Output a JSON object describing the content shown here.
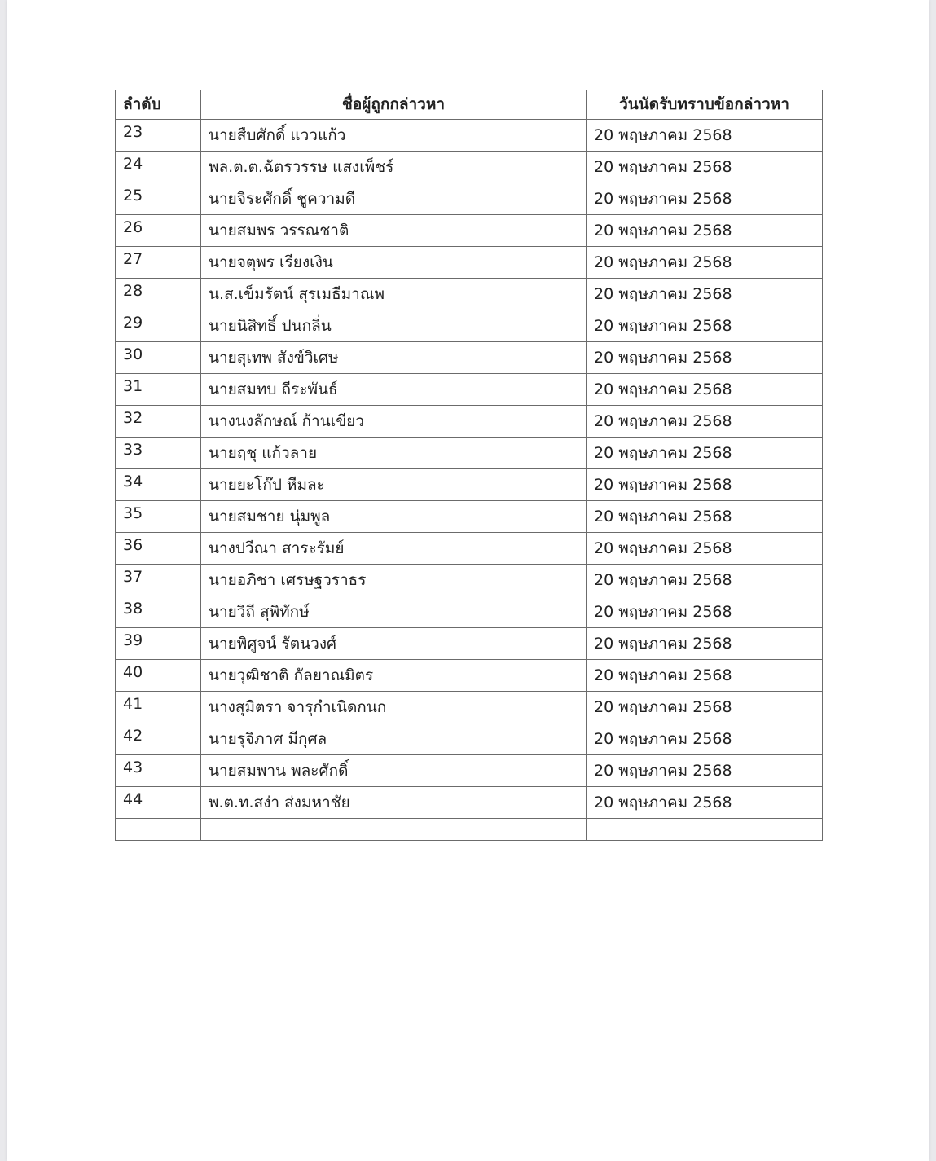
{
  "table": {
    "headers": [
      "ลำดับ",
      "ชื่อผู้ถูกกล่าวหา",
      "วันนัดรับทราบข้อกล่าวหา"
    ],
    "rows": [
      {
        "no": "23",
        "name": "นายสืบศักดิ์ แววแก้ว",
        "date": "20 พฤษภาคม 2568"
      },
      {
        "no": "24",
        "name": "พล.ต.ต.ฉัตรวรรษ แสงเพ็ชร์",
        "date": "20 พฤษภาคม 2568"
      },
      {
        "no": "25",
        "name": "นายจิระศักดิ์ ชูความดี",
        "date": "20 พฤษภาคม 2568"
      },
      {
        "no": "26",
        "name": "นายสมพร วรรณชาติ",
        "date": "20 พฤษภาคม 2568"
      },
      {
        "no": "27",
        "name": "นายจตุพร เรียงเงิน",
        "date": "20 พฤษภาคม 2568"
      },
      {
        "no": "28",
        "name": "น.ส.เข็มรัตน์ สุรเมธีมาณพ",
        "date": "20 พฤษภาคม 2568"
      },
      {
        "no": "29",
        "name": "นายนิสิทธิ์ ปนกลิ่น",
        "date": "20 พฤษภาคม 2568"
      },
      {
        "no": "30",
        "name": "นายสุเทพ สังข์วิเศษ",
        "date": "20 พฤษภาคม 2568"
      },
      {
        "no": "31",
        "name": "นายสมทบ ถีระพันธ์",
        "date": "20 พฤษภาคม 2568"
      },
      {
        "no": "32",
        "name": "นางนงลักษณ์ ก้านเขียว",
        "date": "20 พฤษภาคม 2568"
      },
      {
        "no": "33",
        "name": "นายฤชุ แก้วลาย",
        "date": "20 พฤษภาคม 2568"
      },
      {
        "no": "34",
        "name": "นายยะโก๊ป หีมละ",
        "date": "20 พฤษภาคม 2568"
      },
      {
        "no": "35",
        "name": "นายสมชาย นุ่มพูล",
        "date": "20 พฤษภาคม 2568"
      },
      {
        "no": "36",
        "name": "นางปวีณา สาระรัมย์",
        "date": "20 พฤษภาคม 2568"
      },
      {
        "no": "37",
        "name": "นายอภิชา เศรษฐวราธร",
        "date": "20 พฤษภาคม 2568"
      },
      {
        "no": "38",
        "name": "นายวิถี สุพิทักษ์",
        "date": "20 พฤษภาคม 2568"
      },
      {
        "no": "39",
        "name": "นายพิศูจน์ รัตนวงศ์",
        "date": "20 พฤษภาคม 2568"
      },
      {
        "no": "40",
        "name": "นายวุฒิชาติ กัลยาณมิตร",
        "date": "20 พฤษภาคม 2568"
      },
      {
        "no": "41",
        "name": "นางสุมิตรา จารุกำเนิดกนก",
        "date": "20 พฤษภาคม 2568"
      },
      {
        "no": "42",
        "name": "นายรุจิภาศ มีกุศล",
        "date": "20 พฤษภาคม 2568"
      },
      {
        "no": "43",
        "name": "นายสมพาน พละศักดิ์",
        "date": "20 พฤษภาคม 2568"
      },
      {
        "no": "44",
        "name": "พ.ต.ท.สง่า ส่งมหาชัย",
        "date": "20 พฤษภาคม 2568"
      }
    ]
  }
}
